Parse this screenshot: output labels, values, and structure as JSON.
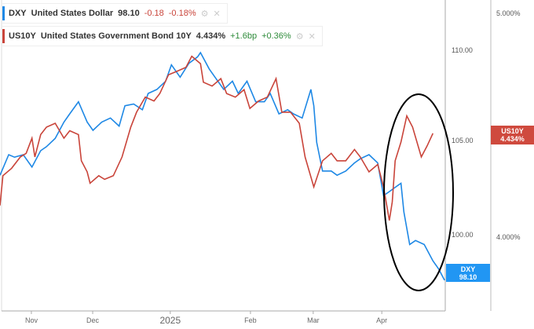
{
  "legend": [
    {
      "symbol": "DXY",
      "name": "United States Dollar",
      "value": "98.10",
      "change": "-0.18",
      "change_pct": "-0.18%",
      "color": "#1e88e5"
    },
    {
      "symbol": "US10Y",
      "name": "United States Government Bond 10Y",
      "value": "4.434%",
      "change": "+1.6bp",
      "change_pct": "+0.36%",
      "color": "#c9443a"
    }
  ],
  "axes": {
    "left_ticks": [
      "110.00",
      "105.00",
      "100.00"
    ],
    "right_ticks": [
      "5.000%",
      "4.000%"
    ],
    "x_ticks": [
      {
        "label": "Nov",
        "idx": 10.8
      },
      {
        "label": "Dec",
        "idx": 31.9
      },
      {
        "label": "2025",
        "idx": 58.6
      },
      {
        "label": "Feb",
        "idx": 86.2
      },
      {
        "label": "Mar",
        "idx": 107.8
      },
      {
        "label": "Apr",
        "idx": 131.4
      }
    ]
  },
  "tags": {
    "dxy": {
      "symbol": "DXY",
      "value": "98.10"
    },
    "us10y": {
      "symbol": "US10Y",
      "value": "4.434%"
    }
  },
  "chart_data": {
    "type": "line",
    "x_unit": "trading day index",
    "series": [
      {
        "name": "DXY",
        "axis": "left",
        "ylim": [
          96.5,
          112.7
        ],
        "color": "#1e88e5",
        "x": [
          0,
          3,
          5,
          8,
          11,
          14,
          16,
          19,
          22,
          24,
          27,
          30,
          32,
          35,
          38,
          41,
          43,
          46,
          49,
          51,
          54,
          57,
          59,
          62,
          65,
          68,
          69,
          72,
          74,
          77,
          80,
          82,
          85,
          88,
          91,
          93,
          96,
          99,
          101,
          104,
          107,
          108,
          109,
          111,
          114,
          116,
          119,
          122,
          124,
          127,
          130,
          132,
          134,
          136,
          138,
          139,
          141,
          143,
          146,
          149,
          151,
          153
        ],
        "y": [
          103.57,
          104.64,
          104.51,
          104.64,
          104.0,
          104.85,
          105.06,
          105.49,
          106.34,
          106.77,
          107.4,
          106.34,
          105.91,
          106.34,
          106.55,
          106.13,
          107.19,
          107.28,
          106.98,
          107.83,
          108.04,
          108.47,
          109.32,
          108.68,
          109.4,
          109.74,
          109.96,
          109.11,
          108.68,
          108.04,
          108.47,
          107.83,
          108.47,
          107.4,
          107.4,
          107.83,
          106.77,
          106.98,
          106.77,
          106.55,
          108.04,
          107.19,
          105.28,
          103.79,
          103.79,
          103.57,
          103.79,
          104.21,
          104.43,
          104.64,
          104.21,
          102.51,
          102.72,
          102.94,
          103.15,
          101.66,
          99.96,
          100.17,
          99.96,
          99.11,
          98.68,
          98.1
        ]
      },
      {
        "name": "US10Y",
        "axis": "right",
        "ylim": [
          3.6,
          5.06
        ],
        "color": "#c9443a",
        "x": [
          0,
          1,
          4,
          7,
          9,
          11,
          12,
          14,
          16,
          19,
          22,
          24,
          27,
          28,
          30,
          31,
          34,
          36,
          39,
          42,
          45,
          47,
          50,
          53,
          55,
          58,
          61,
          64,
          66,
          69,
          70,
          73,
          76,
          78,
          81,
          84,
          86,
          89,
          92,
          95,
          97,
          100,
          103,
          105,
          108,
          111,
          114,
          116,
          119,
          122,
          124,
          127,
          130,
          132,
          134,
          135,
          136,
          138,
          140,
          142,
          145,
          147,
          149
        ],
        "y": [
          4.095,
          4.235,
          4.27,
          4.323,
          4.34,
          4.411,
          4.323,
          4.428,
          4.463,
          4.481,
          4.411,
          4.446,
          4.428,
          4.305,
          4.253,
          4.2,
          4.235,
          4.218,
          4.235,
          4.323,
          4.463,
          4.533,
          4.604,
          4.586,
          4.621,
          4.709,
          4.726,
          4.744,
          4.796,
          4.761,
          4.674,
          4.656,
          4.691,
          4.621,
          4.604,
          4.639,
          4.551,
          4.586,
          4.604,
          4.691,
          4.533,
          4.533,
          4.481,
          4.323,
          4.182,
          4.305,
          4.34,
          4.305,
          4.305,
          4.358,
          4.323,
          4.253,
          4.288,
          4.182,
          4.025,
          4.112,
          4.305,
          4.393,
          4.516,
          4.463,
          4.323,
          4.375,
          4.434
        ]
      }
    ]
  }
}
